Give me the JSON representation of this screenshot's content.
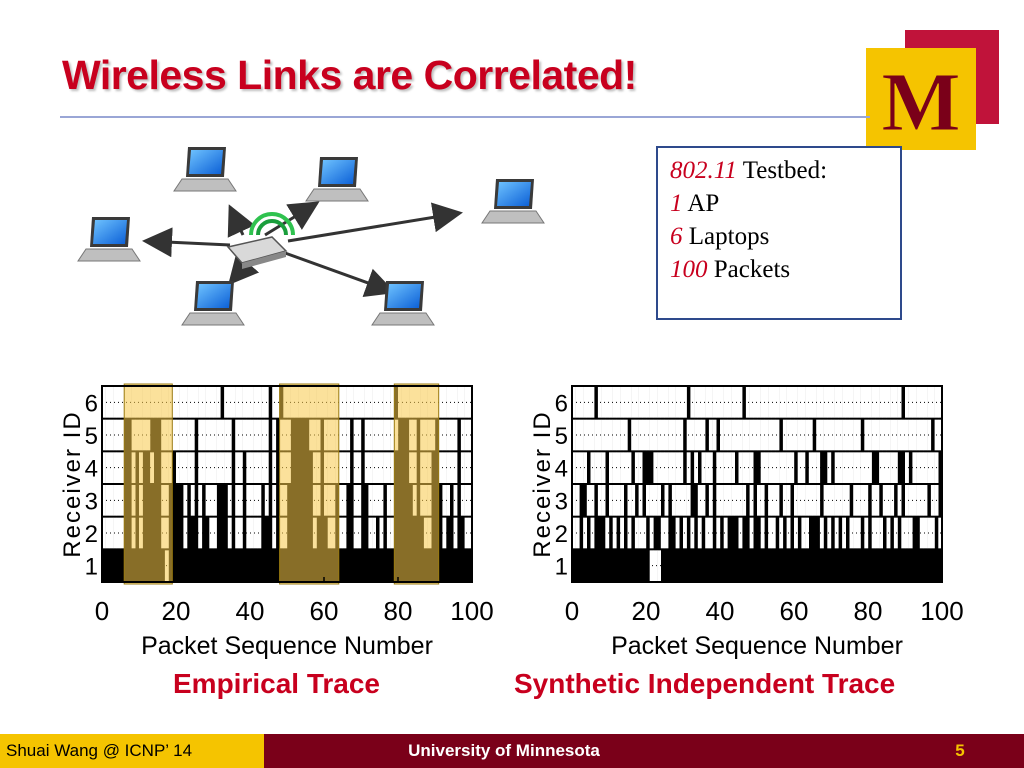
{
  "slide": {
    "title": "Wireless Links are Correlated!",
    "logo_letter": "M",
    "infobox": {
      "lines": [
        {
          "num": "802.11",
          "text": " Testbed:"
        },
        {
          "num": "1",
          "text": " AP"
        },
        {
          "num": "6",
          "text": " Laptops"
        },
        {
          "num": "100",
          "text": " Packets"
        }
      ]
    },
    "captions": {
      "left": "Empirical Trace",
      "right": "Synthetic Independent Trace"
    },
    "footer": {
      "left": "Shuai Wang @ ICNP’ 14",
      "center": "University of Minnesota",
      "page": "5"
    },
    "colors": {
      "title": "#c8001e",
      "maroon": "#7a0019",
      "gold": "#f5c400",
      "highlight": "#f7c948"
    }
  },
  "chart_data": [
    {
      "type": "heatmap",
      "xlabel": "Packet Sequence Number",
      "ylabel": "Receiver ID",
      "xticks": [
        0,
        20,
        40,
        60,
        80,
        100
      ],
      "yticks": [
        1,
        2,
        3,
        4,
        5,
        6
      ],
      "xlim": [
        0,
        100
      ],
      "highlights": [
        [
          6,
          19
        ],
        [
          48,
          64
        ],
        [
          79,
          91
        ]
      ],
      "rows": [
        "1111111111111111111111111111111101111111111110110111111111111111111111111111111011111111111111111111",
        "1111110011111000111111111011111111101111111110101110000011101111111011011111111100011011110111110111",
        "1111110010100100111011111011111111101101111110101110000001101111111011011111111000011011100111110111",
        "1111110010100000110000101010111000101101111010101100000001101110110011001111011000001011100011010111",
        "1111110010100000110000100010011000101101111000101100000001000110110011001101011000000001100010010011",
        "0000000000000000010000000000000000000000000000000000000000000000000000000000000000000000000000000000"
      ]
    },
    {
      "type": "heatmap",
      "xlabel": "Packet Sequence Number",
      "ylabel": "Receiver ID",
      "xticks": [
        0,
        20,
        40,
        60,
        80,
        100
      ],
      "yticks": [
        1,
        2,
        3,
        4,
        5,
        6
      ],
      "xlim": [
        0,
        100
      ],
      "highlights": [],
      "rows": [
        "1111110111111111111111111111111011111111111111011111111111111111111111111111111111111111101111111111",
        "1111111111111110111111111111110111110110111111111111111101111111101111111111110111111111111111111011",
        "1111011110111111011000111111110101011101111101111001111111110110111001011111111110011111001011111110",
        "1100110110111101101011110101111100110101111111101011011101101111111011111110111101101110101111110110",
        "1101010001010101011101001100101010101101010001001001011010101011000101010101110101110101011100111101",
        "0000000000000000000001110000000000000000000000000000000000000000000000000000000000000000000000000000"
      ]
    }
  ]
}
